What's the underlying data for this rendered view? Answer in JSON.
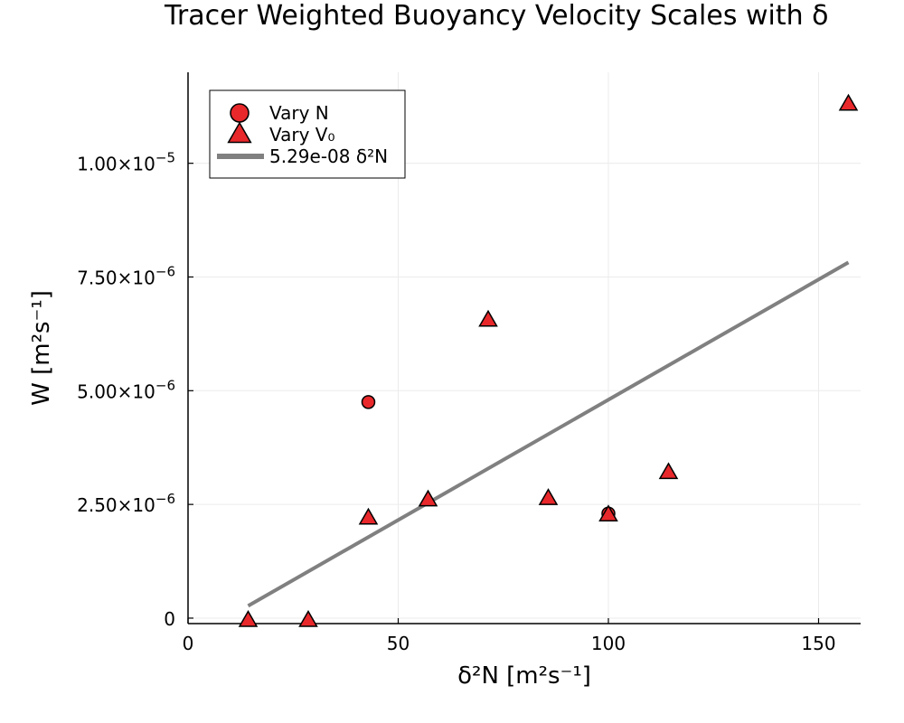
{
  "chart_data": {
    "type": "scatter",
    "title": "Tracer Weighted Buoyancy Velocity Scales with δ",
    "xlabel": "δ²N [m²s⁻¹]",
    "ylabel": "W [m²s⁻¹]",
    "xlim": [
      0,
      160
    ],
    "ylim": [
      -1.2e-07,
      1.2e-05
    ],
    "x_ticks": [
      {
        "value": 0,
        "label": "0"
      },
      {
        "value": 50,
        "label": "50"
      },
      {
        "value": 100,
        "label": "100"
      },
      {
        "value": 150,
        "label": "150"
      }
    ],
    "y_ticks": [
      {
        "value": 0,
        "label": "0",
        "exp": ""
      },
      {
        "value": 2.5e-06,
        "label": "2.50×10",
        "exp": "−6"
      },
      {
        "value": 5e-06,
        "label": "5.00×10",
        "exp": "−6"
      },
      {
        "value": 7.5e-06,
        "label": "7.50×10",
        "exp": "−6"
      },
      {
        "value": 1e-05,
        "label": "1.00×10",
        "exp": "−5"
      }
    ],
    "grid": true,
    "legend_position": "top-left",
    "series": [
      {
        "name": "Vary N",
        "marker": "circle",
        "color": "#e8282b",
        "points": [
          {
            "x": 42.9,
            "y": 4.75e-06
          },
          {
            "x": 100.0,
            "y": 2.3e-06
          }
        ]
      },
      {
        "name": "Vary V₀",
        "marker": "triangle",
        "color": "#e8282b",
        "points": [
          {
            "x": 14.3,
            "y": -5e-08
          },
          {
            "x": 28.6,
            "y": -5e-08
          },
          {
            "x": 42.9,
            "y": 2.2e-06
          },
          {
            "x": 57.1,
            "y": 2.6e-06
          },
          {
            "x": 71.4,
            "y": 6.55e-06
          },
          {
            "x": 85.7,
            "y": 2.63e-06
          },
          {
            "x": 100.0,
            "y": 2.27e-06
          },
          {
            "x": 114.3,
            "y": 3.2e-06
          },
          {
            "x": 157.1,
            "y": 1.13e-05
          }
        ]
      },
      {
        "name": "5.29e-08 δ²N",
        "type": "line",
        "color": "#808080",
        "points": [
          {
            "x": 14.3,
            "y": 2.7e-07
          },
          {
            "x": 157.1,
            "y": 7.82e-06
          }
        ]
      }
    ]
  }
}
